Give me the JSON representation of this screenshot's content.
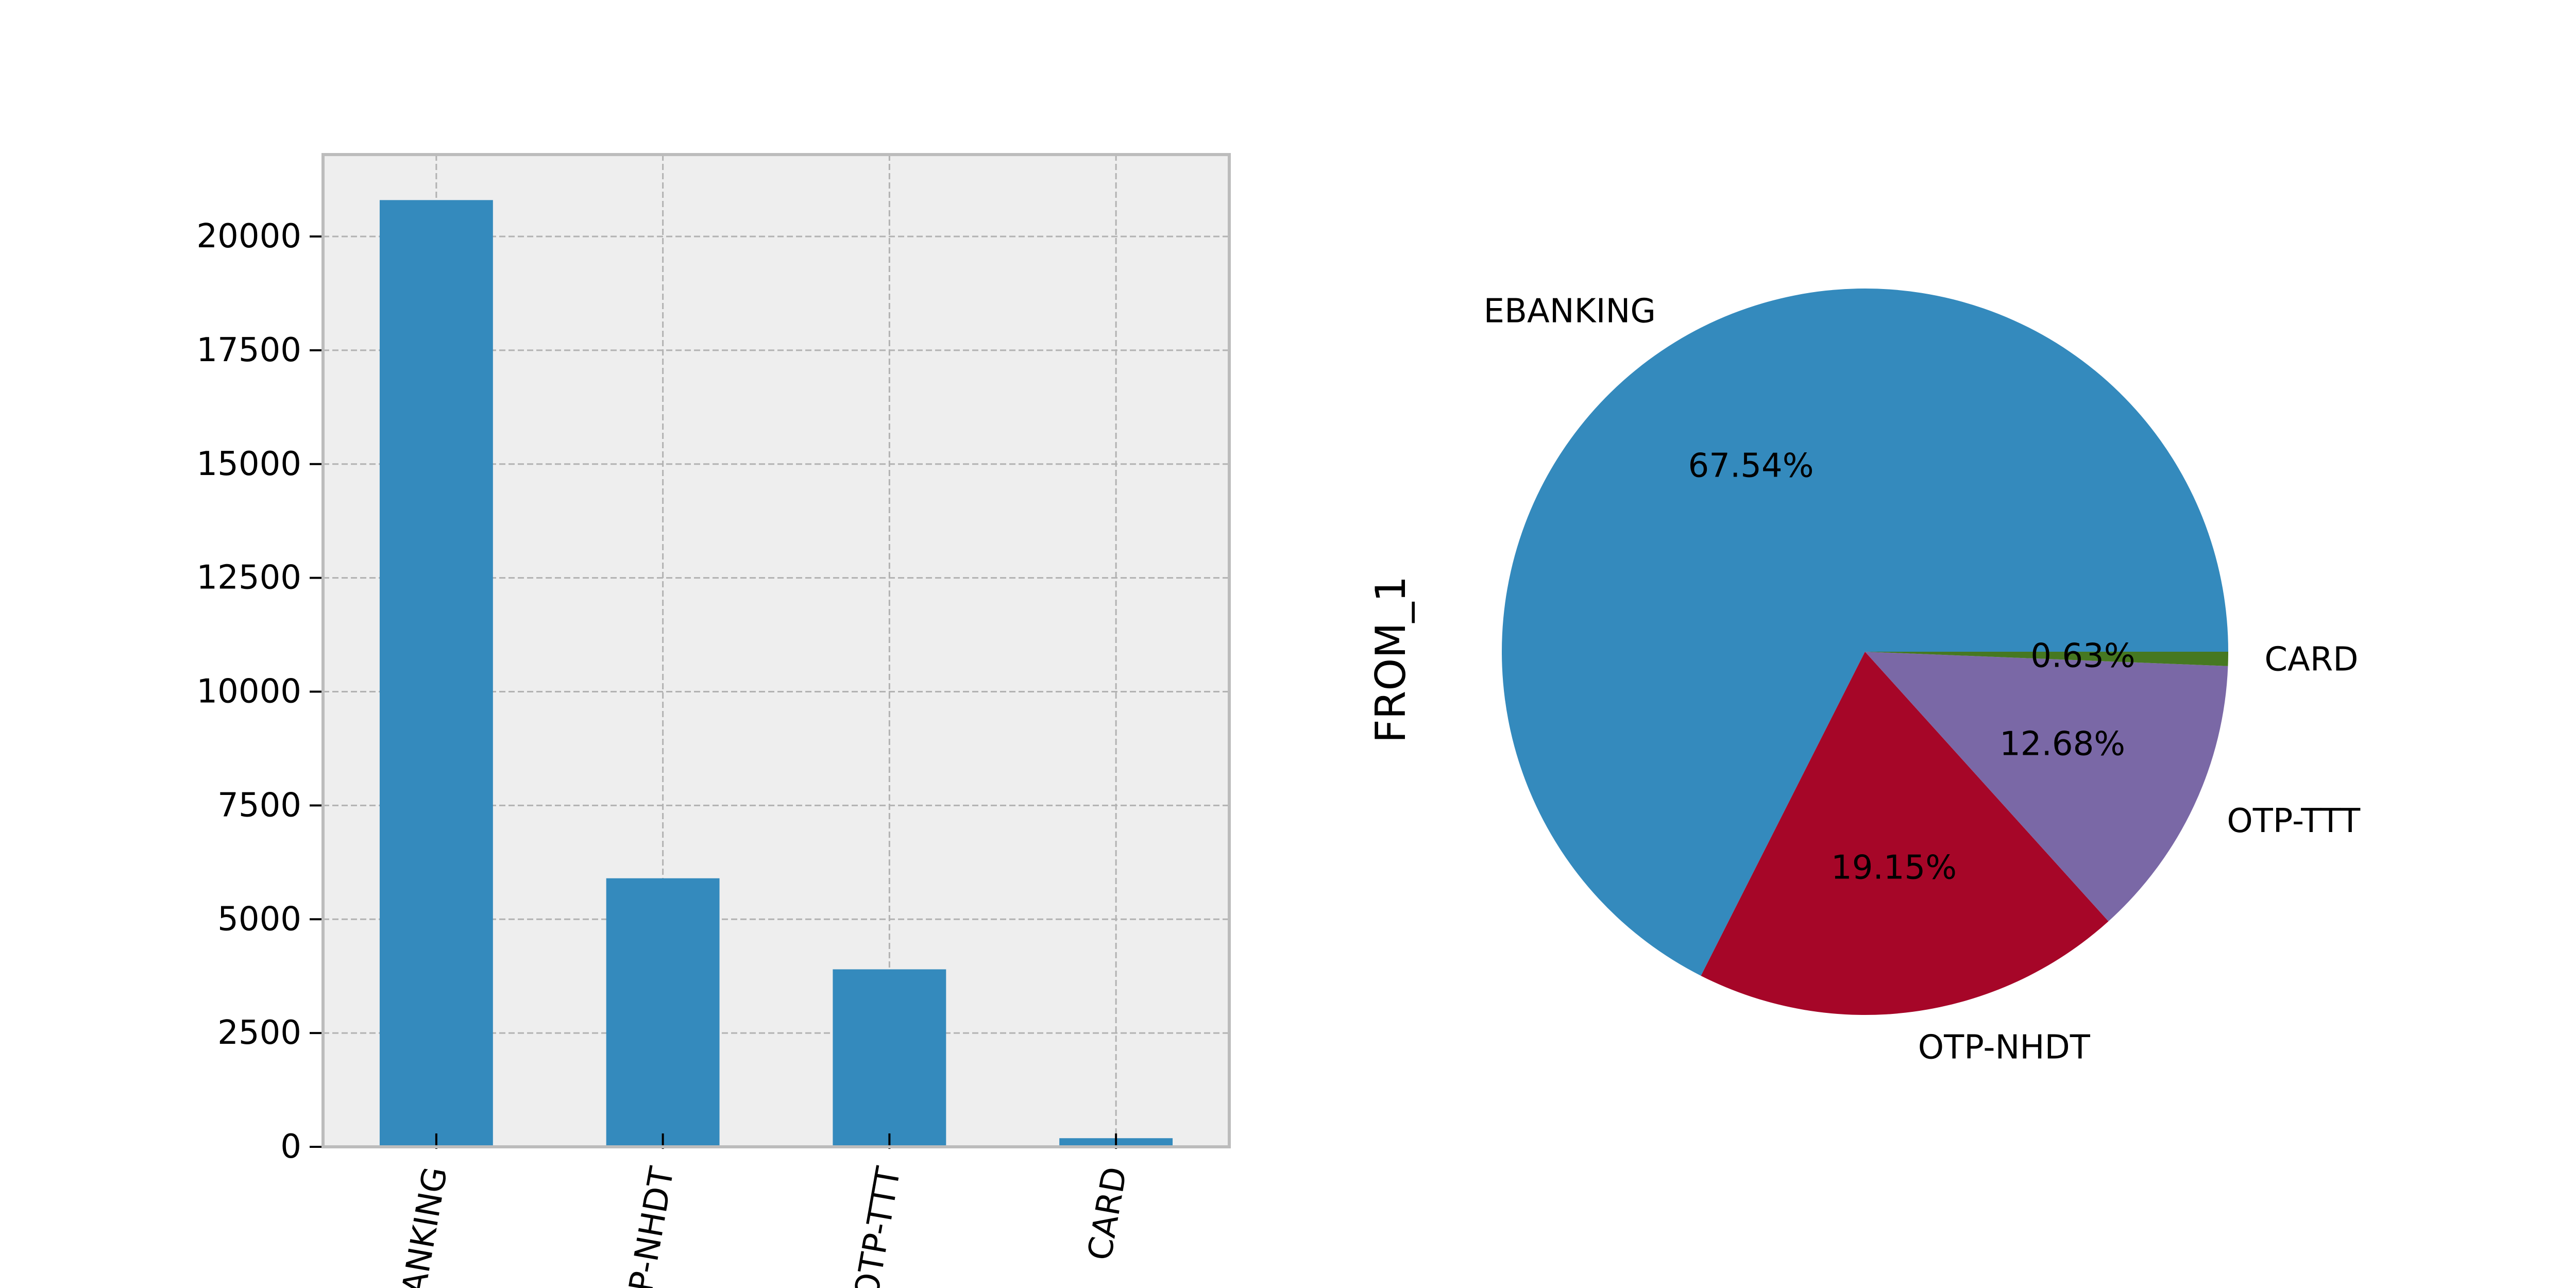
{
  "chart_data": [
    {
      "type": "bar",
      "categories": [
        "EBANKING",
        "OTP-NHDT",
        "OTP-TTT",
        "CARD"
      ],
      "values": [
        20800,
        5900,
        3900,
        190
      ],
      "ylim": [
        0,
        21800
      ],
      "yticks": [
        0,
        2500,
        5000,
        7500,
        10000,
        12500,
        15000,
        17500,
        20000
      ],
      "grid": true,
      "bar_color": "#348abd",
      "background_color": "#eeeeee",
      "title": "",
      "xlabel": "",
      "ylabel": ""
    },
    {
      "type": "pie",
      "ylabel": "FROM_1",
      "labels": [
        "EBANKING",
        "OTP-NHDT",
        "OTP-TTT",
        "CARD"
      ],
      "percent_labels": [
        "67.54%",
        "19.15%",
        "12.68%",
        "0.63%"
      ],
      "values": [
        67.54,
        19.15,
        12.68,
        0.63
      ],
      "colors": [
        "#348abd",
        "#a60628",
        "#7a68a6",
        "#467821"
      ],
      "start_angle": 0,
      "direction": "counterclockwise"
    }
  ]
}
